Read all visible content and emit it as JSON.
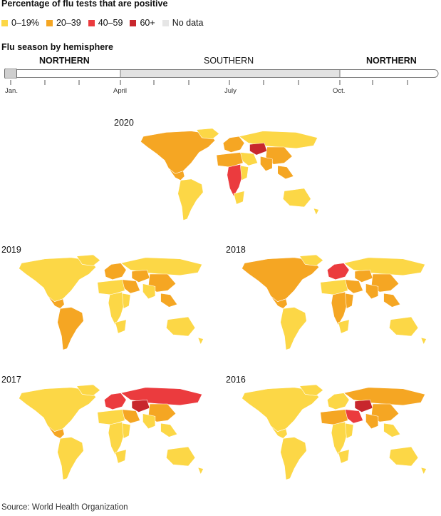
{
  "title": "Percentage of flu tests that are positive",
  "legend": [
    {
      "label": "0–19%",
      "color": "#fcd746"
    },
    {
      "label": "20–39",
      "color": "#f5a623"
    },
    {
      "label": "40–59",
      "color": "#eb3b3e"
    },
    {
      "label": "60+",
      "color": "#c8272d"
    },
    {
      "label": "No data",
      "color": "#e6e6e6"
    }
  ],
  "season": {
    "title": "Flu season by hemisphere",
    "hemispheres": [
      "NORTHERN",
      "SOUTHERN",
      "NORTHERN"
    ],
    "months": [
      "Jan.",
      "April",
      "July",
      "Oct."
    ]
  },
  "maps": [
    {
      "year": "2020"
    },
    {
      "year": "2019"
    },
    {
      "year": "2018"
    },
    {
      "year": "2017"
    },
    {
      "year": "2016"
    }
  ],
  "source": "Source: World Health Organization"
}
